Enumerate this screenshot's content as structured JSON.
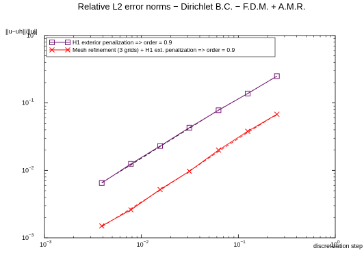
{
  "chart_data": {
    "type": "line",
    "title": "Relative L2 error norms − Dirichlet B.C. −  F.D.M. + A.M.R.",
    "xlabel": "discretization step",
    "ylabel": "||u−uh||/||u||",
    "xscale": "log",
    "yscale": "log",
    "xlim": [
      0.001,
      1
    ],
    "ylim": [
      0.001,
      1
    ],
    "grid": false,
    "legend_position": "top-left",
    "xticks": [
      {
        "value": 0.001,
        "base": "10",
        "exp": "−3"
      },
      {
        "value": 0.01,
        "base": "10",
        "exp": "−2"
      },
      {
        "value": 0.1,
        "base": "10",
        "exp": "−1"
      },
      {
        "value": 1,
        "base": "10",
        "exp": "0"
      }
    ],
    "yticks": [
      {
        "value": 0.001,
        "base": "10",
        "exp": "−3"
      },
      {
        "value": 0.01,
        "base": "10",
        "exp": "−2"
      },
      {
        "value": 0.1,
        "base": "10",
        "exp": "−1"
      },
      {
        "value": 1,
        "base": "10",
        "exp": "0"
      }
    ],
    "series": [
      {
        "name": "H1 exterior penalization  => order = 0.9",
        "color": "#7a1a7a",
        "marker": "square",
        "x": [
          0.0039,
          0.0078,
          0.0156,
          0.03125,
          0.0625,
          0.125,
          0.25
        ],
        "y": [
          0.0065,
          0.0125,
          0.023,
          0.043,
          0.078,
          0.138,
          0.25
        ],
        "fit": [
          0.0066,
          0.0121,
          0.0226,
          0.0421,
          0.0786,
          0.138,
          0.25
        ]
      },
      {
        "name": "Mesh refinement (3 grids) + H1 ext. penalization => order = 0.9",
        "color": "#ff0000",
        "marker": "x",
        "x": [
          0.0039,
          0.0078,
          0.0156,
          0.03125,
          0.0625,
          0.125,
          0.25
        ],
        "y": [
          0.0015,
          0.0026,
          0.0052,
          0.0097,
          0.02,
          0.038,
          0.068
        ],
        "fit": [
          0.00146,
          0.00272,
          0.0051,
          0.0097,
          0.0191,
          0.0365,
          0.068
        ]
      }
    ]
  }
}
